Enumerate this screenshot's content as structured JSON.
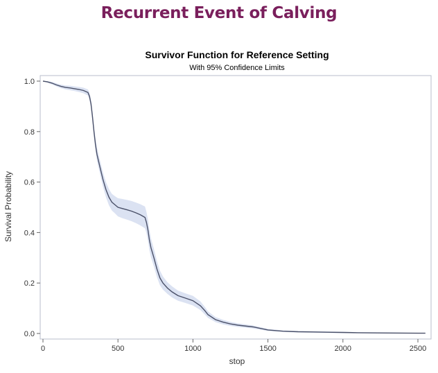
{
  "heading": "Recurrent Event of Calving",
  "chart_data": {
    "type": "line",
    "title": "Survivor Function for Reference Setting",
    "subtitle": "With 95% Confidence Limits",
    "xlabel": "stop",
    "ylabel": "Survival Probability",
    "xlim": [
      0,
      2560
    ],
    "ylim": [
      0,
      1.0
    ],
    "xticks": [
      0,
      500,
      1000,
      1500,
      2000,
      2500
    ],
    "yticks": [
      0.0,
      0.2,
      0.4,
      0.6,
      0.8,
      1.0
    ],
    "ytick_labels": [
      "0.0",
      "0.2",
      "0.4",
      "0.6",
      "0.8",
      "1.0"
    ],
    "grid": false,
    "colors": {
      "line": "#4a5068",
      "band": "#dbe2f2",
      "frame": "#b8bccb"
    },
    "series": [
      {
        "x": [
          0,
          30,
          60,
          90,
          120,
          150,
          180,
          210,
          240,
          270,
          300,
          310,
          320,
          330,
          340,
          350,
          360,
          380,
          400,
          420,
          440,
          460,
          480,
          500,
          530,
          560,
          590,
          620,
          650,
          680,
          690,
          700,
          710,
          720,
          740,
          760,
          780,
          800,
          830,
          860,
          900,
          950,
          1000,
          1050,
          1080,
          1100,
          1150,
          1200,
          1250,
          1300,
          1400,
          1450,
          1500,
          1600,
          1700,
          1800,
          1900,
          2000,
          2100,
          2300,
          2500,
          2550
        ],
        "y": [
          1.0,
          0.997,
          0.992,
          0.985,
          0.979,
          0.975,
          0.973,
          0.97,
          0.967,
          0.963,
          0.955,
          0.94,
          0.91,
          0.86,
          0.8,
          0.75,
          0.71,
          0.66,
          0.61,
          0.57,
          0.54,
          0.52,
          0.51,
          0.5,
          0.495,
          0.49,
          0.485,
          0.478,
          0.47,
          0.46,
          0.44,
          0.41,
          0.37,
          0.34,
          0.3,
          0.255,
          0.22,
          0.2,
          0.18,
          0.165,
          0.15,
          0.14,
          0.13,
          0.11,
          0.09,
          0.075,
          0.055,
          0.045,
          0.038,
          0.033,
          0.026,
          0.02,
          0.014,
          0.009,
          0.007,
          0.006,
          0.005,
          0.004,
          0.003,
          0.002,
          0.001,
          0.001
        ],
        "lower": [
          1.0,
          0.994,
          0.987,
          0.979,
          0.972,
          0.967,
          0.964,
          0.961,
          0.957,
          0.952,
          0.943,
          0.925,
          0.893,
          0.84,
          0.778,
          0.726,
          0.685,
          0.633,
          0.582,
          0.54,
          0.508,
          0.487,
          0.476,
          0.464,
          0.457,
          0.451,
          0.445,
          0.437,
          0.428,
          0.417,
          0.398,
          0.368,
          0.33,
          0.302,
          0.265,
          0.223,
          0.191,
          0.174,
          0.157,
          0.143,
          0.13,
          0.121,
          0.111,
          0.093,
          0.075,
          0.062,
          0.045,
          0.036,
          0.03,
          0.026,
          0.02,
          0.015,
          0.01,
          0.006,
          0.004,
          0.003,
          0.002,
          0.001,
          0.001,
          0.0,
          0.0,
          0.0
        ],
        "upper": [
          1.0,
          1.0,
          0.997,
          0.991,
          0.986,
          0.983,
          0.982,
          0.979,
          0.977,
          0.974,
          0.967,
          0.955,
          0.927,
          0.88,
          0.822,
          0.774,
          0.735,
          0.687,
          0.638,
          0.6,
          0.572,
          0.553,
          0.544,
          0.536,
          0.533,
          0.529,
          0.525,
          0.519,
          0.512,
          0.503,
          0.482,
          0.452,
          0.41,
          0.378,
          0.335,
          0.287,
          0.249,
          0.226,
          0.203,
          0.187,
          0.17,
          0.159,
          0.149,
          0.127,
          0.105,
          0.088,
          0.065,
          0.054,
          0.046,
          0.04,
          0.032,
          0.025,
          0.018,
          0.012,
          0.01,
          0.009,
          0.008,
          0.007,
          0.005,
          0.004,
          0.002,
          0.002
        ]
      }
    ]
  }
}
